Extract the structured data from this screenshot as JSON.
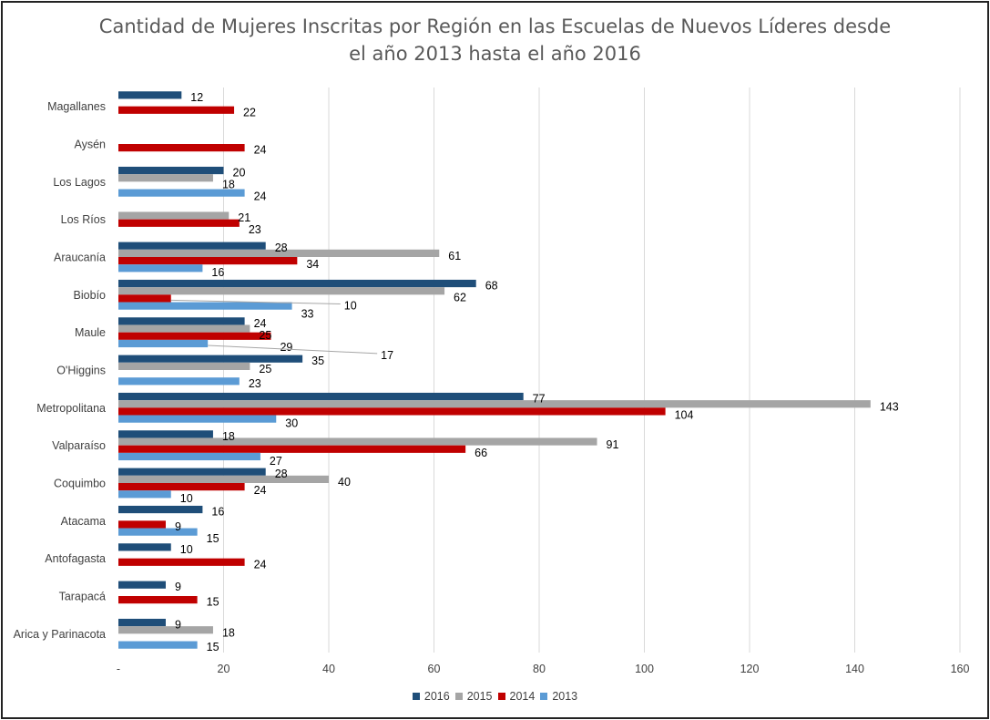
{
  "chart_data": {
    "type": "bar",
    "orientation": "horizontal",
    "title": "Cantidad de Mujeres Inscritas por Región en las Escuelas de Nuevos Líderes desde el año 2013 hasta el año 2016",
    "title_lines": [
      "Cantidad de Mujeres Inscritas por Región en las Escuelas de Nuevos Líderes desde",
      "el año 2013 hasta el año 2016"
    ],
    "categories": [
      "Magallanes",
      "Aysén",
      "Los Lagos",
      "Los Ríos",
      "Araucanía",
      "Biobío",
      "Maule",
      "O'Higgins",
      "Metropolitana",
      "Valparaíso",
      "Coquimbo",
      "Atacama",
      "Antofagasta",
      "Tarapacá",
      "Arica y Parinacota"
    ],
    "series": [
      {
        "name": "2016",
        "color": "#1F4E79",
        "values": [
          12,
          null,
          20,
          null,
          28,
          68,
          24,
          35,
          77,
          18,
          28,
          16,
          10,
          9,
          9
        ]
      },
      {
        "name": "2015",
        "color": "#A5A5A5",
        "values": [
          null,
          null,
          18,
          21,
          61,
          62,
          25,
          25,
          143,
          91,
          40,
          null,
          null,
          null,
          18
        ]
      },
      {
        "name": "2014",
        "color": "#C00000",
        "values": [
          22,
          24,
          null,
          23,
          34,
          10,
          29,
          null,
          104,
          66,
          24,
          9,
          24,
          15,
          null
        ]
      },
      {
        "name": "2013",
        "color": "#5B9BD5",
        "values": [
          null,
          null,
          24,
          null,
          16,
          33,
          17,
          23,
          30,
          27,
          10,
          15,
          null,
          null,
          15
        ]
      }
    ],
    "xlim": [
      0,
      160
    ],
    "x_ticks": [
      0,
      20,
      40,
      60,
      80,
      100,
      120,
      140,
      160
    ],
    "x_tick_labels": [
      "-",
      "20",
      "40",
      "60",
      "80",
      "100",
      "120",
      "140",
      "160"
    ],
    "grid": "vertical",
    "gridline_color": "#D9D9D9",
    "legend_position": "bottom"
  }
}
